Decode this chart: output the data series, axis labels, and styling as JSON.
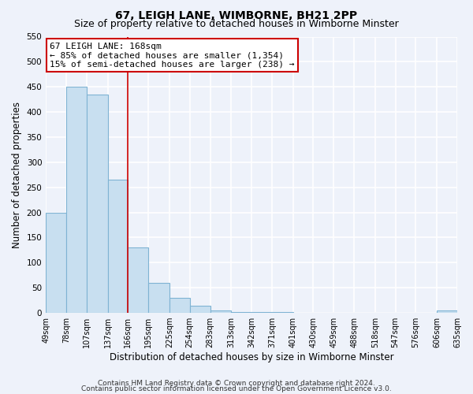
{
  "title": "67, LEIGH LANE, WIMBORNE, BH21 2PP",
  "subtitle": "Size of property relative to detached houses in Wimborne Minster",
  "xlabel": "Distribution of detached houses by size in Wimborne Minster",
  "ylabel": "Number of detached properties",
  "bar_edges": [
    49,
    78,
    107,
    137,
    166,
    195,
    225,
    254,
    283,
    313,
    342,
    371,
    401,
    430,
    459,
    488,
    518,
    547,
    576,
    606,
    635
  ],
  "bar_heights": [
    200,
    450,
    435,
    265,
    130,
    60,
    30,
    15,
    5,
    2,
    1,
    1,
    0,
    0,
    0,
    0,
    0,
    0,
    0,
    5
  ],
  "bar_color": "#c8dff0",
  "bar_edgecolor": "#7fb3d3",
  "reference_line_x": 166,
  "reference_line_color": "#cc0000",
  "ylim": [
    0,
    550
  ],
  "yticks": [
    0,
    50,
    100,
    150,
    200,
    250,
    300,
    350,
    400,
    450,
    500,
    550
  ],
  "annotation_line1": "67 LEIGH LANE: 168sqm",
  "annotation_line2": "← 85% of detached houses are smaller (1,354)",
  "annotation_line3": "15% of semi-detached houses are larger (238) →",
  "annotation_box_color": "white",
  "annotation_box_edgecolor": "#cc0000",
  "tick_labels": [
    "49sqm",
    "78sqm",
    "107sqm",
    "137sqm",
    "166sqm",
    "195sqm",
    "225sqm",
    "254sqm",
    "283sqm",
    "313sqm",
    "342sqm",
    "371sqm",
    "401sqm",
    "430sqm",
    "459sqm",
    "488sqm",
    "518sqm",
    "547sqm",
    "576sqm",
    "606sqm",
    "635sqm"
  ],
  "footer_line1": "Contains HM Land Registry data © Crown copyright and database right 2024.",
  "footer_line2": "Contains public sector information licensed under the Open Government Licence v3.0.",
  "background_color": "#eef2fa",
  "grid_color": "white",
  "title_fontsize": 10,
  "subtitle_fontsize": 9,
  "axis_label_fontsize": 8.5,
  "tick_fontsize": 7,
  "footer_fontsize": 6.5,
  "annotation_fontsize": 8
}
